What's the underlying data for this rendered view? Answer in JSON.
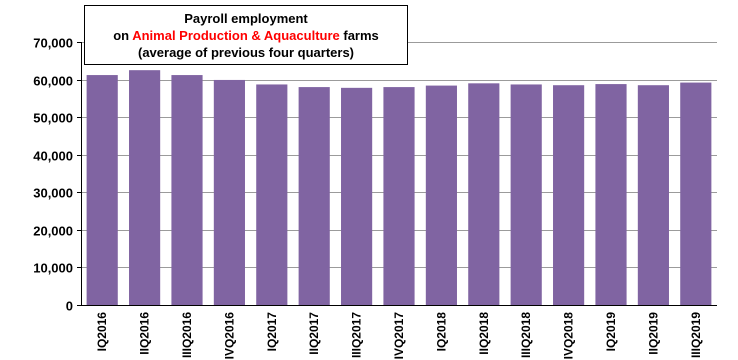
{
  "chart_data": {
    "type": "bar",
    "title": {
      "line1": "Payroll employment",
      "line2_prefix": "on ",
      "line2_highlight": "Animal Production & Aquaculture",
      "line2_suffix": " farms",
      "line3": "(average of previous four quarters)"
    },
    "categories": [
      "IQ2016",
      "IIQ2016",
      "IIIQ2016",
      "IVQ2016",
      "IQ2017",
      "IIQ2017",
      "IIIQ2017",
      "IVQ2017",
      "IQ2018",
      "IIQ2018",
      "IIIQ2018",
      "IVQ2018",
      "IQ2019",
      "IIQ2019",
      "IIIQ2019"
    ],
    "values": [
      61200,
      62500,
      61200,
      59900,
      58700,
      58000,
      57800,
      58000,
      58400,
      59000,
      58700,
      58500,
      58800,
      58500,
      59200
    ],
    "ylim": [
      0,
      70000
    ],
    "yticks": [
      0,
      10000,
      20000,
      30000,
      40000,
      50000,
      60000,
      70000
    ],
    "ytick_labels": [
      "0",
      "10,000",
      "20,000",
      "30,000",
      "40,000",
      "50,000",
      "60,000",
      "70,000"
    ],
    "grid": true,
    "colors": {
      "bar": "#8064a2",
      "grid": "#9b9b9b",
      "highlight": "#ff0000"
    }
  }
}
